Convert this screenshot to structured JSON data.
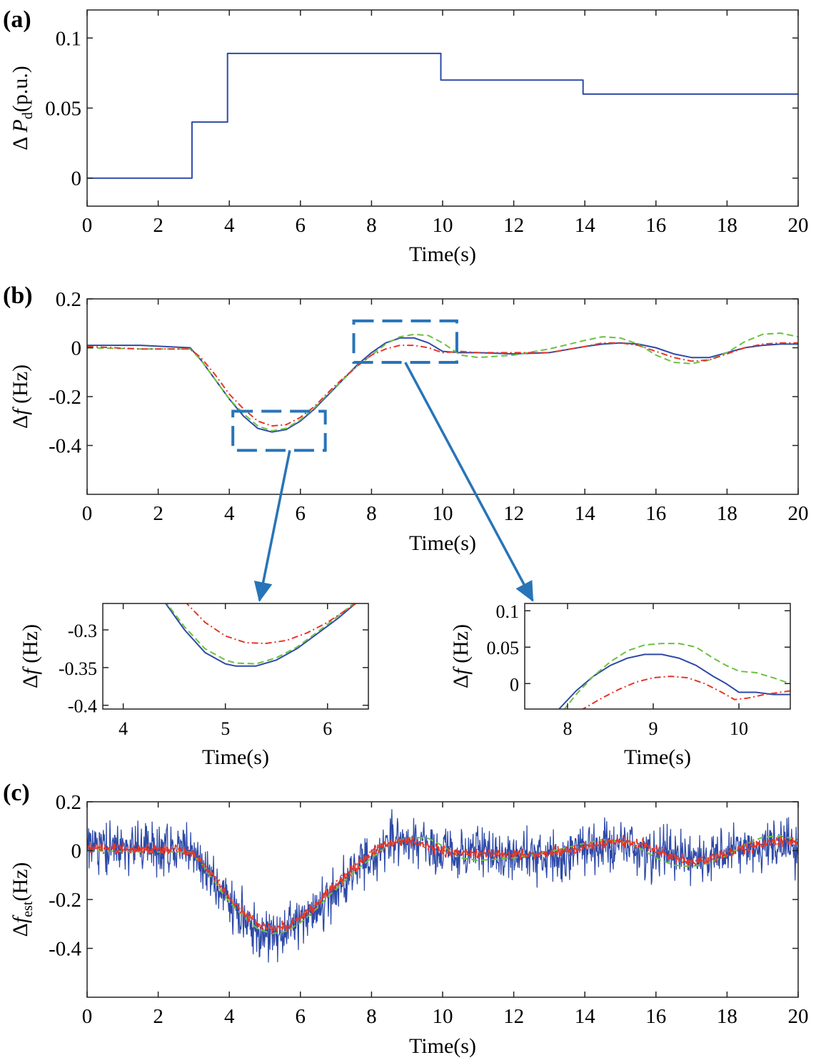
{
  "chart_data": [
    {
      "id": "a",
      "type": "line",
      "panel_label": "(a)",
      "xlabel": "Time(s)",
      "ylabel_prefix": "Δ ",
      "ylabel_var": "P",
      "ylabel_sub": "d",
      "ylabel_suffix": "(p.u.)",
      "xlim": [
        0,
        20
      ],
      "ylim": [
        -0.02,
        0.12
      ],
      "xticks": [
        0,
        2,
        4,
        6,
        8,
        10,
        12,
        14,
        16,
        18,
        20
      ],
      "xtick_labels": [
        "0",
        "2",
        "4",
        "6",
        "8",
        "10",
        "12",
        "14",
        "16",
        "18",
        "20"
      ],
      "yticks": [
        0,
        0.05,
        0.1
      ],
      "ytick_labels": [
        "0",
        "0.05",
        "0.1"
      ],
      "series": [
        {
          "name": "ΔPd",
          "color": "#2e4aa8",
          "style": "solid",
          "step": true,
          "x": [
            0,
            2.95,
            2.95,
            3.95,
            3.95,
            9.95,
            9.95,
            13.95,
            13.95,
            20
          ],
          "y": [
            0,
            0,
            0.04,
            0.04,
            0.089,
            0.089,
            0.07,
            0.07,
            0.06,
            0.06
          ]
        }
      ]
    },
    {
      "id": "b",
      "type": "line",
      "panel_label": "(b)",
      "xlabel": "Time(s)",
      "ylabel_prefix": "Δ",
      "ylabel_var": "f",
      "ylabel_sub": "",
      "ylabel_suffix": " (Hz)",
      "xlim": [
        0,
        20
      ],
      "ylim": [
        -0.6,
        0.2
      ],
      "xticks": [
        0,
        2,
        4,
        6,
        8,
        10,
        12,
        14,
        16,
        18,
        20
      ],
      "xtick_labels": [
        "0",
        "2",
        "4",
        "6",
        "8",
        "10",
        "12",
        "14",
        "16",
        "18",
        "20"
      ],
      "yticks": [
        -0.4,
        -0.2,
        0,
        0.2
      ],
      "ytick_labels": [
        "-0.4",
        "-0.2",
        "0",
        "0.2"
      ],
      "zoom_boxes": [
        {
          "x": [
            4.1,
            6.7
          ],
          "y": [
            -0.42,
            -0.26
          ],
          "target": "b-zoom1"
        },
        {
          "x": [
            7.5,
            10.4
          ],
          "y": [
            -0.06,
            0.11
          ],
          "target": "b-zoom2"
        }
      ],
      "series": [
        {
          "name": "blue",
          "color": "#2e4aa8",
          "style": "solid",
          "x": [
            0,
            1.5,
            2.9,
            3.2,
            3.6,
            4.0,
            4.4,
            4.8,
            5.2,
            5.6,
            6.0,
            6.4,
            6.8,
            7.2,
            7.6,
            8.0,
            8.4,
            8.8,
            9.2,
            9.6,
            10.0,
            10.5,
            11.0,
            12.0,
            13.0,
            14.0,
            14.5,
            15.0,
            15.5,
            16.0,
            16.5,
            17.0,
            17.5,
            18.0,
            18.5,
            19.0,
            19.5,
            20.0
          ],
          "y": [
            0.01,
            0.01,
            0.0,
            -0.05,
            -0.13,
            -0.21,
            -0.28,
            -0.33,
            -0.345,
            -0.335,
            -0.3,
            -0.25,
            -0.19,
            -0.13,
            -0.07,
            -0.02,
            0.02,
            0.04,
            0.04,
            0.02,
            -0.015,
            -0.02,
            -0.02,
            -0.025,
            -0.02,
            0.005,
            0.015,
            0.02,
            0.015,
            0.0,
            -0.025,
            -0.04,
            -0.04,
            -0.02,
            0.0,
            0.01,
            0.015,
            0.015
          ]
        },
        {
          "name": "green",
          "color": "#6cc13f",
          "style": "dashed",
          "x": [
            0,
            1.5,
            2.9,
            3.2,
            3.6,
            4.0,
            4.4,
            4.8,
            5.2,
            5.6,
            6.0,
            6.4,
            6.8,
            7.2,
            7.6,
            8.0,
            8.4,
            8.8,
            9.2,
            9.6,
            10.0,
            10.5,
            11.0,
            12.0,
            13.0,
            14.0,
            14.5,
            15.0,
            15.5,
            16.0,
            16.5,
            17.0,
            17.5,
            18.0,
            18.5,
            19.0,
            19.5,
            20.0
          ],
          "y": [
            0.0,
            -0.005,
            -0.005,
            -0.05,
            -0.13,
            -0.21,
            -0.27,
            -0.32,
            -0.34,
            -0.33,
            -0.295,
            -0.245,
            -0.185,
            -0.13,
            -0.075,
            -0.03,
            0.015,
            0.045,
            0.055,
            0.05,
            0.02,
            -0.03,
            -0.04,
            -0.03,
            -0.005,
            0.03,
            0.045,
            0.04,
            0.015,
            -0.03,
            -0.06,
            -0.065,
            -0.05,
            -0.02,
            0.025,
            0.055,
            0.06,
            0.045
          ]
        },
        {
          "name": "red",
          "color": "#e4382a",
          "style": "dashdot",
          "x": [
            0,
            1.5,
            2.9,
            3.2,
            3.6,
            4.0,
            4.4,
            4.8,
            5.2,
            5.6,
            6.0,
            6.4,
            6.8,
            7.2,
            7.6,
            8.0,
            8.4,
            8.8,
            9.2,
            9.6,
            10.0,
            10.5,
            11.0,
            12.0,
            13.0,
            14.0,
            14.5,
            15.0,
            15.5,
            16.0,
            16.5,
            17.0,
            17.5,
            18.0,
            18.5,
            19.0,
            19.5,
            20.0
          ],
          "y": [
            0.005,
            -0.005,
            -0.005,
            -0.04,
            -0.11,
            -0.19,
            -0.25,
            -0.3,
            -0.32,
            -0.315,
            -0.285,
            -0.24,
            -0.18,
            -0.125,
            -0.075,
            -0.03,
            -0.005,
            0.01,
            0.01,
            0.0,
            -0.02,
            -0.015,
            -0.02,
            -0.02,
            -0.02,
            0.005,
            0.02,
            0.02,
            0.01,
            -0.015,
            -0.04,
            -0.055,
            -0.05,
            -0.025,
            0.0,
            0.015,
            0.02,
            0.02
          ]
        }
      ]
    },
    {
      "id": "b-zoom1",
      "type": "line",
      "panel_label": "",
      "xlabel": "Time(s)",
      "ylabel_prefix": "Δ",
      "ylabel_var": "f",
      "ylabel_sub": "",
      "ylabel_suffix": " (Hz)",
      "xlim": [
        3.8,
        6.4
      ],
      "ylim": [
        -0.405,
        -0.265
      ],
      "xticks": [
        4,
        5,
        6
      ],
      "xtick_labels": [
        "4",
        "5",
        "6"
      ],
      "yticks": [
        -0.4,
        -0.35,
        -0.3
      ],
      "ytick_labels": [
        "-0.4",
        "-0.35",
        "-0.3"
      ],
      "series": [
        {
          "name": "blue",
          "color": "#2e4aa8",
          "style": "solid",
          "x": [
            4.4,
            4.6,
            4.8,
            5.0,
            5.1,
            5.3,
            5.5,
            5.7,
            5.9,
            6.1,
            6.3
          ],
          "y": [
            -0.262,
            -0.3,
            -0.33,
            -0.345,
            -0.348,
            -0.348,
            -0.34,
            -0.325,
            -0.305,
            -0.285,
            -0.262
          ]
        },
        {
          "name": "green",
          "color": "#6cc13f",
          "style": "dashed",
          "x": [
            4.4,
            4.6,
            4.8,
            5.0,
            5.1,
            5.3,
            5.5,
            5.7,
            5.9,
            6.1,
            6.3
          ],
          "y": [
            -0.26,
            -0.296,
            -0.325,
            -0.34,
            -0.344,
            -0.345,
            -0.337,
            -0.323,
            -0.303,
            -0.282,
            -0.26
          ]
        },
        {
          "name": "red",
          "color": "#e4382a",
          "style": "dashdot",
          "x": [
            4.6,
            4.8,
            5.0,
            5.2,
            5.4,
            5.6,
            5.8,
            6.0,
            6.2,
            6.3
          ],
          "y": [
            -0.262,
            -0.29,
            -0.308,
            -0.317,
            -0.318,
            -0.314,
            -0.304,
            -0.29,
            -0.272,
            -0.263
          ]
        }
      ]
    },
    {
      "id": "b-zoom2",
      "type": "line",
      "panel_label": "",
      "xlabel": "Time(s)",
      "ylabel_prefix": "Δ",
      "ylabel_var": "f",
      "ylabel_sub": "",
      "ylabel_suffix": " (Hz)",
      "xlim": [
        7.5,
        10.6
      ],
      "ylim": [
        -0.035,
        0.11
      ],
      "xticks": [
        8,
        9,
        10
      ],
      "xtick_labels": [
        "8",
        "9",
        "10"
      ],
      "yticks": [
        0,
        0.05,
        0.1
      ],
      "ytick_labels": [
        "0",
        "0.05",
        "0.1"
      ],
      "series": [
        {
          "name": "blue",
          "color": "#2e4aa8",
          "style": "solid",
          "x": [
            7.9,
            8.1,
            8.3,
            8.5,
            8.7,
            8.9,
            9.1,
            9.3,
            9.5,
            9.7,
            9.85,
            10.0,
            10.2,
            10.4,
            10.6
          ],
          "y": [
            -0.035,
            -0.01,
            0.01,
            0.025,
            0.035,
            0.04,
            0.04,
            0.035,
            0.025,
            0.01,
            0.0,
            -0.012,
            -0.012,
            -0.015,
            -0.015
          ]
        },
        {
          "name": "green",
          "color": "#6cc13f",
          "style": "dashed",
          "x": [
            7.95,
            8.1,
            8.3,
            8.5,
            8.7,
            8.9,
            9.1,
            9.3,
            9.5,
            9.7,
            9.85,
            10.0,
            10.2,
            10.4,
            10.6
          ],
          "y": [
            -0.037,
            -0.015,
            0.01,
            0.03,
            0.045,
            0.053,
            0.055,
            0.055,
            0.05,
            0.035,
            0.025,
            0.017,
            0.015,
            0.008,
            0.0
          ]
        },
        {
          "name": "red",
          "color": "#e4382a",
          "style": "dashdot",
          "x": [
            8.15,
            8.4,
            8.6,
            8.8,
            9.0,
            9.2,
            9.4,
            9.6,
            9.8,
            9.95,
            10.1,
            10.3,
            10.6
          ],
          "y": [
            -0.037,
            -0.02,
            -0.008,
            0.002,
            0.008,
            0.01,
            0.008,
            0.0,
            -0.012,
            -0.022,
            -0.02,
            -0.015,
            -0.01
          ]
        }
      ]
    },
    {
      "id": "c",
      "type": "line",
      "panel_label": "(c)",
      "xlabel": "Time(s)",
      "ylabel_prefix": "Δ",
      "ylabel_var": "f",
      "ylabel_sub": "est",
      "ylabel_suffix": "(Hz)",
      "xlim": [
        0,
        20
      ],
      "ylim": [
        -0.6,
        0.2
      ],
      "xticks": [
        0,
        2,
        4,
        6,
        8,
        10,
        12,
        14,
        16,
        18,
        20
      ],
      "xtick_labels": [
        "0",
        "2",
        "4",
        "6",
        "8",
        "10",
        "12",
        "14",
        "16",
        "18",
        "20"
      ],
      "yticks": [
        -0.4,
        -0.2,
        0,
        0.2
      ],
      "ytick_labels": [
        "-0.4",
        "-0.2",
        "0",
        "0.2"
      ],
      "noise": {
        "samples": 1400,
        "blue_amplitude": 0.065,
        "red_amplitude": 0.012
      },
      "series": [
        {
          "name": "blue",
          "color": "#2e4aa8",
          "style": "solid",
          "noisy": true,
          "x": [
            0,
            1.5,
            2.9,
            3.2,
            3.6,
            4.0,
            4.4,
            4.8,
            5.2,
            5.6,
            6.0,
            6.4,
            6.8,
            7.2,
            7.6,
            8.0,
            8.4,
            8.8,
            9.2,
            9.6,
            10.0,
            10.5,
            11.0,
            12.0,
            13.0,
            14.0,
            14.5,
            15.0,
            15.5,
            16.0,
            16.5,
            17.0,
            17.5,
            18.0,
            18.5,
            19.0,
            19.5,
            20.0
          ],
          "y": [
            0.01,
            0.01,
            0.0,
            -0.05,
            -0.13,
            -0.21,
            -0.28,
            -0.33,
            -0.345,
            -0.335,
            -0.3,
            -0.25,
            -0.19,
            -0.13,
            -0.07,
            -0.02,
            0.02,
            0.04,
            0.04,
            0.02,
            -0.015,
            -0.02,
            -0.02,
            -0.025,
            -0.02,
            0.005,
            0.015,
            0.02,
            0.015,
            0.0,
            -0.025,
            -0.04,
            -0.04,
            -0.02,
            0.0,
            0.01,
            0.015,
            0.015
          ]
        },
        {
          "name": "green",
          "color": "#6cc13f",
          "style": "dashed",
          "x": [
            0,
            1.5,
            2.9,
            3.2,
            3.6,
            4.0,
            4.4,
            4.8,
            5.2,
            5.6,
            6.0,
            6.4,
            6.8,
            7.2,
            7.6,
            8.0,
            8.4,
            8.8,
            9.2,
            9.6,
            10.0,
            10.5,
            11.0,
            12.0,
            13.0,
            14.0,
            14.5,
            15.0,
            15.5,
            16.0,
            16.5,
            17.0,
            17.5,
            18.0,
            18.5,
            19.0,
            19.5,
            20.0
          ],
          "y": [
            0.0,
            -0.005,
            -0.005,
            -0.05,
            -0.13,
            -0.21,
            -0.27,
            -0.32,
            -0.34,
            -0.33,
            -0.295,
            -0.245,
            -0.185,
            -0.13,
            -0.075,
            -0.03,
            0.015,
            0.045,
            0.055,
            0.05,
            0.02,
            -0.03,
            -0.04,
            -0.03,
            -0.005,
            0.03,
            0.045,
            0.04,
            0.015,
            -0.03,
            -0.06,
            -0.065,
            -0.05,
            -0.02,
            0.025,
            0.055,
            0.06,
            0.045
          ]
        },
        {
          "name": "red",
          "color": "#e4382a",
          "style": "dashdot",
          "noisy": true,
          "x": [
            0,
            1.5,
            2.9,
            3.2,
            3.6,
            4.0,
            4.4,
            4.8,
            5.2,
            5.6,
            6.0,
            6.4,
            6.8,
            7.2,
            7.6,
            8.0,
            8.4,
            8.8,
            9.2,
            9.6,
            10.0,
            10.5,
            11.0,
            12.0,
            13.0,
            14.0,
            14.5,
            15.0,
            15.5,
            16.0,
            16.5,
            17.0,
            17.5,
            18.0,
            18.5,
            19.0,
            19.5,
            20.0
          ],
          "y": [
            0.01,
            0.005,
            0.0,
            -0.04,
            -0.11,
            -0.19,
            -0.255,
            -0.3,
            -0.32,
            -0.31,
            -0.275,
            -0.225,
            -0.165,
            -0.11,
            -0.055,
            -0.01,
            0.025,
            0.04,
            0.035,
            0.02,
            -0.005,
            -0.01,
            -0.01,
            -0.015,
            -0.01,
            0.01,
            0.03,
            0.04,
            0.03,
            0.0,
            -0.025,
            -0.045,
            -0.035,
            -0.01,
            0.01,
            0.025,
            0.04,
            0.03
          ]
        }
      ]
    }
  ]
}
